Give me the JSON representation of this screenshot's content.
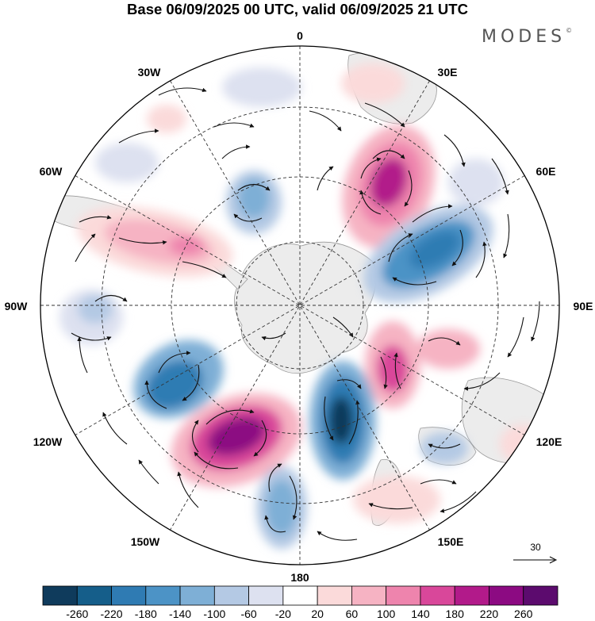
{
  "title": "Base 06/09/2025 00 UTC, valid 06/09/2025 21 UTC",
  "brand": "MODES",
  "brand_mark": "©",
  "projection": "south-polar-stereographic",
  "longitude_labels": [
    "0",
    "30E",
    "60E",
    "90E",
    "120E",
    "150E",
    "180",
    "150W",
    "120W",
    "90W",
    "60W",
    "30W"
  ],
  "reference_vector": {
    "label": "30",
    "icon": "arrow-right-icon"
  },
  "colorbar": {
    "ticks": [
      "-260",
      "-220",
      "-180",
      "-140",
      "-100",
      "-60",
      "-20",
      "20",
      "60",
      "100",
      "140",
      "180",
      "220",
      "260"
    ],
    "colors": [
      "#0f3b5c",
      "#155e8a",
      "#2f7bb3",
      "#4c93c6",
      "#7eafd6",
      "#b4c9e4",
      "#dde1f0",
      "#ffffff",
      "#fbdada",
      "#f6b3c3",
      "#ee84ad",
      "#d9479a",
      "#b21a8a",
      "#8c0a82",
      "#5c0b6e"
    ]
  }
}
